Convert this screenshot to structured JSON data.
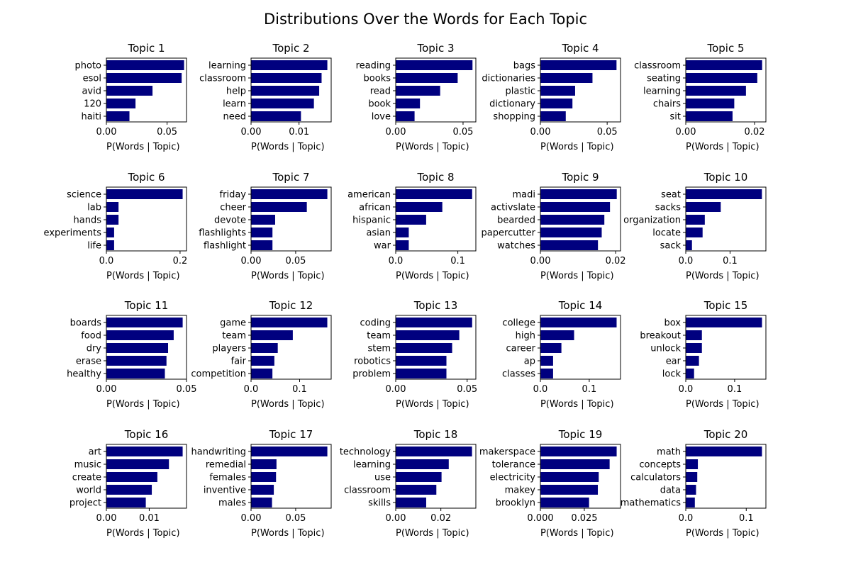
{
  "figure": {
    "title": "Distributions Over the Words for Each Topic"
  },
  "style": {
    "bar_color": "#00007f"
  },
  "chart_data": [
    {
      "type": "bar",
      "orientation": "horizontal",
      "title": "Topic 1",
      "xlabel": "P(Words | Topic)",
      "categories": [
        "photo",
        "esol",
        "avid",
        "120",
        "haiti"
      ],
      "values": [
        0.064,
        0.062,
        0.038,
        0.024,
        0.019
      ],
      "xlim": [
        0,
        0.066
      ],
      "xticks": [
        0,
        0.05
      ],
      "xtick_labels": [
        "0.00",
        "0.05"
      ]
    },
    {
      "type": "bar",
      "orientation": "horizontal",
      "title": "Topic 2",
      "xlabel": "P(Words | Topic)",
      "categories": [
        "learning",
        "classroom",
        "help",
        "learn",
        "need"
      ],
      "values": [
        0.0159,
        0.0147,
        0.0142,
        0.0131,
        0.0104
      ],
      "xlim": [
        0,
        0.0167
      ],
      "xticks": [
        0,
        0.01
      ],
      "xtick_labels": [
        "0.00",
        "0.01"
      ]
    },
    {
      "type": "bar",
      "orientation": "horizontal",
      "title": "Topic 3",
      "xlabel": "P(Words | Topic)",
      "categories": [
        "reading",
        "books",
        "read",
        "book",
        "love"
      ],
      "values": [
        0.057,
        0.046,
        0.033,
        0.018,
        0.014
      ],
      "xlim": [
        0,
        0.0595
      ],
      "xticks": [
        0,
        0.05
      ],
      "xtick_labels": [
        "0.00",
        "0.05"
      ]
    },
    {
      "type": "bar",
      "orientation": "horizontal",
      "title": "Topic 4",
      "xlabel": "P(Words | Topic)",
      "categories": [
        "bags",
        "dictionaries",
        "plastic",
        "dictionary",
        "shopping"
      ],
      "values": [
        0.057,
        0.039,
        0.026,
        0.024,
        0.019
      ],
      "xlim": [
        0,
        0.06
      ],
      "xticks": [
        0,
        0.05
      ],
      "xtick_labels": [
        "0.00",
        "0.05"
      ]
    },
    {
      "type": "bar",
      "orientation": "horizontal",
      "title": "Topic 5",
      "xlabel": "P(Words | Topic)",
      "categories": [
        "classroom",
        "seating",
        "learning",
        "chairs",
        "sit"
      ],
      "values": [
        0.0222,
        0.0208,
        0.0175,
        0.0141,
        0.0136
      ],
      "xlim": [
        0,
        0.0233
      ],
      "xticks": [
        0,
        0.02
      ],
      "xtick_labels": [
        "0.00",
        "0.02"
      ]
    },
    {
      "type": "bar",
      "orientation": "horizontal",
      "title": "Topic 6",
      "xlabel": "P(Words | Topic)",
      "categories": [
        "science",
        "lab",
        "hands",
        "experiments",
        "life"
      ],
      "values": [
        0.207,
        0.033,
        0.033,
        0.021,
        0.021
      ],
      "xlim": [
        0,
        0.2175
      ],
      "xticks": [
        0,
        0.2
      ],
      "xtick_labels": [
        "0.0",
        "0.2"
      ]
    },
    {
      "type": "bar",
      "orientation": "horizontal",
      "title": "Topic 7",
      "xlabel": "P(Words | Topic)",
      "categories": [
        "friday",
        "cheer",
        "devote",
        "flashlights",
        "flashlight"
      ],
      "values": [
        0.0855,
        0.0625,
        0.027,
        0.024,
        0.024
      ],
      "xlim": [
        0,
        0.0898
      ],
      "xticks": [
        0,
        0.05
      ],
      "xtick_labels": [
        "0.00",
        "0.05"
      ]
    },
    {
      "type": "bar",
      "orientation": "horizontal",
      "title": "Topic 8",
      "xlabel": "P(Words | Topic)",
      "categories": [
        "american",
        "african",
        "hispanic",
        "asian",
        "war"
      ],
      "values": [
        0.123,
        0.075,
        0.049,
        0.021,
        0.021
      ],
      "xlim": [
        0,
        0.129
      ],
      "xticks": [
        0,
        0.1
      ],
      "xtick_labels": [
        "0.0",
        "0.1"
      ]
    },
    {
      "type": "bar",
      "orientation": "horizontal",
      "title": "Topic 9",
      "xlabel": "P(Words | Topic)",
      "categories": [
        "madi",
        "activslate",
        "bearded",
        "papercutter",
        "watches"
      ],
      "values": [
        0.0203,
        0.0185,
        0.017,
        0.0163,
        0.0153
      ],
      "xlim": [
        0,
        0.0213
      ],
      "xticks": [
        0,
        0.02
      ],
      "xtick_labels": [
        "0.00",
        "0.02"
      ]
    },
    {
      "type": "bar",
      "orientation": "horizontal",
      "title": "Topic 10",
      "xlabel": "P(Words | Topic)",
      "categories": [
        "seat",
        "sacks",
        "organization",
        "locate",
        "sack"
      ],
      "values": [
        0.172,
        0.079,
        0.043,
        0.038,
        0.014
      ],
      "xlim": [
        0,
        0.181
      ],
      "xticks": [
        0,
        0.1
      ],
      "xtick_labels": [
        "0.0",
        "0.1"
      ]
    },
    {
      "type": "bar",
      "orientation": "horizontal",
      "title": "Topic 11",
      "xlabel": "P(Words | Topic)",
      "categories": [
        "boards",
        "food",
        "dry",
        "erase",
        "healthy"
      ],
      "values": [
        0.0476,
        0.042,
        0.0385,
        0.0375,
        0.0365
      ],
      "xlim": [
        0,
        0.05
      ],
      "xticks": [
        0,
        0.05
      ],
      "xtick_labels": [
        "0.00",
        "0.05"
      ]
    },
    {
      "type": "bar",
      "orientation": "horizontal",
      "title": "Topic 12",
      "xlabel": "P(Words | Topic)",
      "categories": [
        "game",
        "team",
        "players",
        "fair",
        "competition"
      ],
      "values": [
        0.157,
        0.086,
        0.055,
        0.048,
        0.044
      ],
      "xlim": [
        0,
        0.165
      ],
      "xticks": [
        0,
        0.1
      ],
      "xtick_labels": [
        "0.0",
        "0.1"
      ]
    },
    {
      "type": "bar",
      "orientation": "horizontal",
      "title": "Topic 13",
      "xlabel": "P(Words | Topic)",
      "categories": [
        "coding",
        "team",
        "stem",
        "robotics",
        "problem"
      ],
      "values": [
        0.0535,
        0.0445,
        0.0395,
        0.0355,
        0.0355
      ],
      "xlim": [
        0,
        0.0561
      ],
      "xticks": [
        0,
        0.05
      ],
      "xtick_labels": [
        "0.00",
        "0.05"
      ]
    },
    {
      "type": "bar",
      "orientation": "horizontal",
      "title": "Topic 14",
      "xlabel": "P(Words | Topic)",
      "categories": [
        "college",
        "high",
        "career",
        "ap",
        "classes"
      ],
      "values": [
        0.156,
        0.069,
        0.043,
        0.026,
        0.026
      ],
      "xlim": [
        0,
        0.164
      ],
      "xticks": [
        0,
        0.1
      ],
      "xtick_labels": [
        "0.0",
        "0.1"
      ]
    },
    {
      "type": "bar",
      "orientation": "horizontal",
      "title": "Topic 15",
      "xlabel": "P(Words | Topic)",
      "categories": [
        "box",
        "breakout",
        "unlock",
        "ear",
        "lock"
      ],
      "values": [
        0.156,
        0.033,
        0.033,
        0.027,
        0.017
      ],
      "xlim": [
        0,
        0.164
      ],
      "xticks": [
        0,
        0.1
      ],
      "xtick_labels": [
        "0.0",
        "0.1"
      ]
    },
    {
      "type": "bar",
      "orientation": "horizontal",
      "title": "Topic 16",
      "xlabel": "P(Words | Topic)",
      "categories": [
        "art",
        "music",
        "create",
        "world",
        "project"
      ],
      "values": [
        0.0178,
        0.0146,
        0.0119,
        0.0106,
        0.0092
      ],
      "xlim": [
        0,
        0.0187
      ],
      "xticks": [
        0,
        0.01
      ],
      "xtick_labels": [
        "0.00",
        "0.01"
      ]
    },
    {
      "type": "bar",
      "orientation": "horizontal",
      "title": "Topic 17",
      "xlabel": "P(Words | Topic)",
      "categories": [
        "handwriting",
        "remedial",
        "females",
        "inventive",
        "males"
      ],
      "values": [
        0.0855,
        0.0285,
        0.028,
        0.0255,
        0.0235
      ],
      "xlim": [
        0,
        0.0898
      ],
      "xticks": [
        0,
        0.05
      ],
      "xtick_labels": [
        "0.00",
        "0.05"
      ]
    },
    {
      "type": "bar",
      "orientation": "horizontal",
      "title": "Topic 18",
      "xlabel": "P(Words | Topic)",
      "categories": [
        "technology",
        "learning",
        "use",
        "classroom",
        "skills"
      ],
      "values": [
        0.0338,
        0.0235,
        0.0203,
        0.018,
        0.0135
      ],
      "xlim": [
        0,
        0.0355
      ],
      "xticks": [
        0,
        0.02
      ],
      "xtick_labels": [
        "0.00",
        "0.02"
      ]
    },
    {
      "type": "bar",
      "orientation": "horizontal",
      "title": "Topic 19",
      "xlabel": "P(Words | Topic)",
      "categories": [
        "makerspace",
        "tolerance",
        "electricity",
        "makey",
        "brooklyn"
      ],
      "values": [
        0.0434,
        0.0394,
        0.0332,
        0.0327,
        0.0277
      ],
      "xlim": [
        0,
        0.0456
      ],
      "xticks": [
        0,
        0.025
      ],
      "xtick_labels": [
        "0.000",
        "0.025"
      ]
    },
    {
      "type": "bar",
      "orientation": "horizontal",
      "title": "Topic 20",
      "xlabel": "P(Words | Topic)",
      "categories": [
        "math",
        "concepts",
        "calculators",
        "data",
        "mathematics"
      ],
      "values": [
        0.126,
        0.02,
        0.019,
        0.017,
        0.015
      ],
      "xlim": [
        0,
        0.1325
      ],
      "xticks": [
        0,
        0.1
      ],
      "xtick_labels": [
        "0.0",
        "0.1"
      ]
    }
  ]
}
